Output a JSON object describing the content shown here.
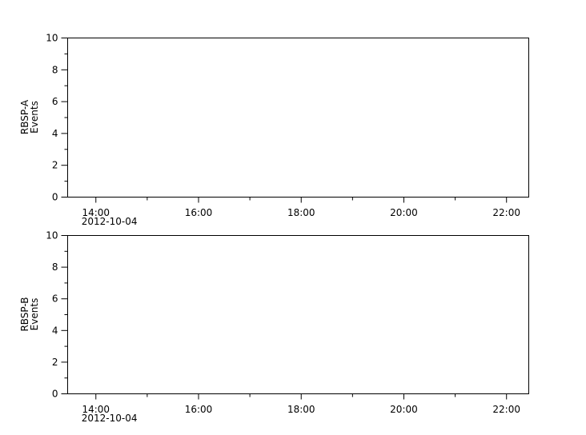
{
  "chart_data": [
    {
      "type": "line",
      "ylabel": [
        "RBSP-A",
        "Events"
      ],
      "ylim": [
        0,
        10
      ],
      "yticks": [
        "0",
        "2",
        "4",
        "6",
        "8",
        "10"
      ],
      "xlim": [
        "13:27",
        "22:26"
      ],
      "xticks": [
        "14:00",
        "16:00",
        "18:00",
        "20:00",
        "22:00"
      ],
      "date_label": "2012-10-04",
      "series": [],
      "grid": false
    },
    {
      "type": "line",
      "ylabel": [
        "RBSP-B",
        "Events"
      ],
      "ylim": [
        0,
        10
      ],
      "yticks": [
        "0",
        "2",
        "4",
        "6",
        "8",
        "10"
      ],
      "xlim": [
        "13:27",
        "22:26"
      ],
      "xticks": [
        "14:00",
        "16:00",
        "18:00",
        "20:00",
        "22:00"
      ],
      "date_label": "2012-10-04",
      "series": [],
      "grid": false
    }
  ]
}
